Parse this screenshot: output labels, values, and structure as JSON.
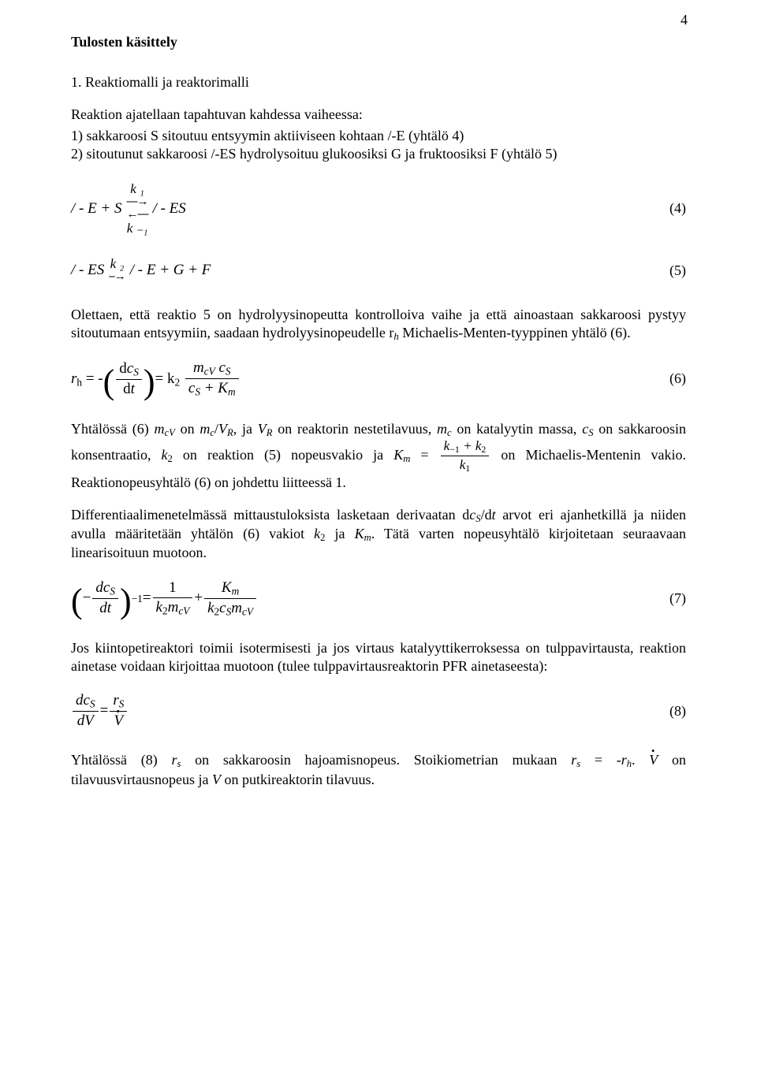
{
  "page_number": "4",
  "heading": "Tulosten käsittely",
  "sec_title": "1. Reaktiomalli ja reaktorimalli",
  "para_intro": "Reaktion ajatellaan tapahtuvan kahdessa vaiheessa:",
  "li1": "1) sakkaroosi S sitoutuu entsyymin aktiiviseen kohtaan /-E (yhtälö 4)",
  "li2": "2) sitoutunut sakkaroosi /-ES hydrolysoituu glukoosiksi G ja fruktoosiksi F (yhtälö 5)",
  "eq4": {
    "lhs": "/ - E + S",
    "k_top": "k ₁",
    "arrow_dbl_top": "⎯⎯→",
    "arrow_dbl_bot": "←⎯⎯",
    "k_bot": "k ₋₁",
    "rhs": "/ - ES",
    "num": "(4)"
  },
  "eq5": {
    "lhs": "/ - ES",
    "k_top": "k ₂",
    "arrow": "⎯→",
    "rhs": "/ - E + G + F",
    "num": "(5)"
  },
  "para_olettaen": "Olettaen, että reaktio 5 on hydrolyysinopeutta kontrolloiva vaihe ja että ainoastaan sakkaroosi pystyy sitoutumaan entsyymiin, saadaan hydrolyysinopeudelle r",
  "para_olettaen_after_sub": " Michaelis-Menten-tyyppinen yhtälö (6).",
  "eq6": {
    "r_label": "r",
    "r_sub": "h",
    "eq1": " = - ",
    "dc_num": "dc",
    "dc_sub": "S",
    "dc_den": "dt",
    "eq2": " = k",
    "k_sub": "2",
    "f_num_a": "m",
    "f_num_a_sub": "cV",
    "f_num_b": " c",
    "f_num_b_sub": "S",
    "f_den_a": "c",
    "f_den_a_sub": "S",
    "f_den_plus": " + K",
    "f_den_b_sub": "m",
    "num": "(6)"
  },
  "para_yhtalossa6_a": "Yhtälössä (6) ",
  "para_yhtalossa6": " on reaktorin nestetilavuus, ",
  "para_yhtalossa6_b": " on katalyytin massa, ",
  "para_yhtalossa6_c": " on sakkaroosin",
  "para_konsentraatio_a": "konsentraatio, ",
  "para_konsentraatio_b": " on reaktion (5) nopeusvakio ja ",
  "km_formula": {
    "K": "K",
    "K_sub": "m",
    "eq": " = ",
    "num_a": "k",
    "num_a_sub": "−1",
    "num_plus": " + k",
    "num_b_sub": "2",
    "den": "k",
    "den_sub": "1"
  },
  "para_konsentraatio_c": " on Michaelis-Mentenin vakio.",
  "para_reaktionopeus": "Reaktionopeusyhtälö (6) on johdettu liitteessä 1.",
  "para_diff": "Differentiaalimenetelmässä mittaustuloksista lasketaan derivaatan d",
  "para_diff_after": "/d",
  "para_diff_b": " arvot eri ajanhetkillä ja niiden avulla määritetään yhtälön (6) vakiot ",
  "para_diff_c": " ja ",
  "para_diff_d": ". Tätä varten nopeusyhtälö kirjoitetaan seuraavaan linearisoituun muotoon.",
  "eq7": {
    "lp": "(",
    "minus": "−",
    "dc_num": "dc",
    "dc_sub": "S",
    "dc_den": "dt",
    "rp": ")",
    "pow": "−1",
    "eq1": " = ",
    "f1_num": "1",
    "f1_den_k": "k",
    "f1_den_k_sub": "2",
    "f1_den_m": "m",
    "f1_den_m_sub": "cV",
    "plus": " + ",
    "f2_num_K": "K",
    "f2_num_K_sub": "m",
    "f2_den_k": "k",
    "f2_den_k_sub": "2",
    "f2_den_c": "c",
    "f2_den_c_sub": "S",
    "f2_den_m": "m",
    "f2_den_m_sub": "cV",
    "num": "(7)"
  },
  "para_jos": "Jos kiintopetireaktori toimii isotermisesti ja jos virtaus katalyyttikerroksessa on tulppavirtausta, reaktion ainetase voidaan kirjoittaa muotoon (tulee tulppavirtausreaktorin PFR ainetaseesta):",
  "eq8": {
    "lhs_num": "dc",
    "lhs_num_sub": "S",
    "lhs_den": "dV",
    "eq": " = ",
    "rhs_num": "r",
    "rhs_num_sub": "S",
    "rhs_den_V": "V",
    "num": "(8)"
  },
  "para_yhtalossa8_a": "Yhtälössä (8) ",
  "para_yhtalossa8_b": " on sakkaroosin hajoamisnopeus.  Stoikiometrian mukaan ",
  "para_yhtalossa8_c": " = -",
  "para_yhtalossa8_d": ".  ",
  "para_yhtalossa8_e": " on tilavuusvirtausnopeus ja ",
  "para_yhtalossa8_f": " on putkireaktorin tilavuus.",
  "sym": {
    "mcV": "m",
    "mcV_sub": "cV",
    "mc": "m",
    "mc_sub": "c",
    "VR": "V",
    "VR_sub": "R",
    "cS": "c",
    "cS_sub": "S",
    "k2": "k",
    "k2_sub": "2",
    "Km": "K",
    "Km_sub": "m",
    "rs": "r",
    "rs_sub": "s",
    "rh": "r",
    "rh_sub": "h",
    "Vdot": "V",
    "V": "V",
    "t": "t",
    "slash": "/",
    "on": " on ",
    "ja": ", ja "
  }
}
